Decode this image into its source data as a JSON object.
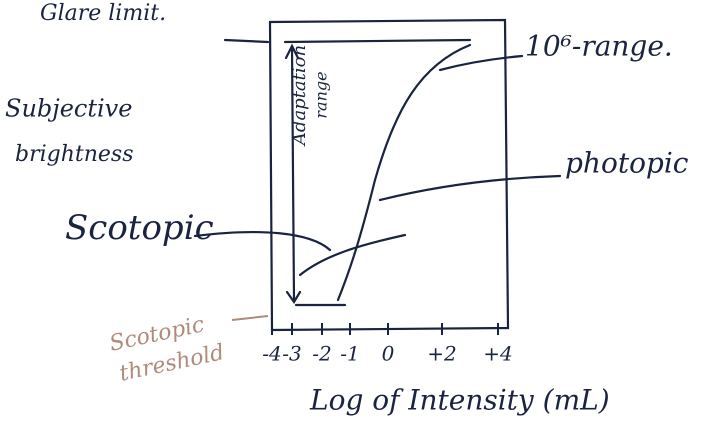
{
  "labels": {
    "glare_limit": "Glare limit.",
    "range": "10⁶-range.",
    "subjective_brightness": [
      "Subjective",
      "brightness"
    ],
    "photopic": "photopic",
    "scotopic": "Scotopic",
    "adaptation_range": [
      "Adaptation",
      "range"
    ],
    "scotopic_threshold": [
      "Scotopic",
      "threshold"
    ],
    "x_axis_title": "Log of Intensity (mL)"
  },
  "x_ticks": [
    "-4",
    "-3",
    "-2",
    "-1",
    "0",
    "+2",
    "+4"
  ]
}
